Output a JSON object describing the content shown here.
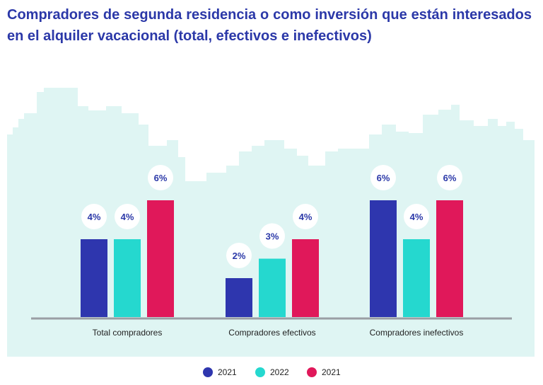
{
  "chart_data": {
    "type": "bar",
    "title": "Compradores de segunda residencia o como inversión que están interesados en el alquiler vacacional (total, efectivos e inefectivos)",
    "categories": [
      "Total compradores",
      "Compradores efectivos",
      "Compradores inefectivos"
    ],
    "series": [
      {
        "name": "2021",
        "color": "#2e36ae",
        "values": [
          4,
          2,
          6
        ],
        "labels": [
          "4%",
          "2%",
          "6%"
        ]
      },
      {
        "name": "2022",
        "color": "#25d8cf",
        "values": [
          4,
          3,
          4
        ],
        "labels": [
          "4%",
          "3%",
          "4%"
        ]
      },
      {
        "name": "2021",
        "color": "#e0185a",
        "values": [
          6,
          4,
          6
        ],
        "labels": [
          "6%",
          "4%",
          "6%"
        ]
      }
    ],
    "ylim": [
      0,
      6.5
    ],
    "xlabel": "",
    "ylabel": "",
    "legend": "bottom-center",
    "grid": false
  },
  "colors": {
    "title": "#2b38a8",
    "background_city": "#dff5f3",
    "baseline": "#9a9ea4",
    "value_label": "#2b38a8"
  }
}
